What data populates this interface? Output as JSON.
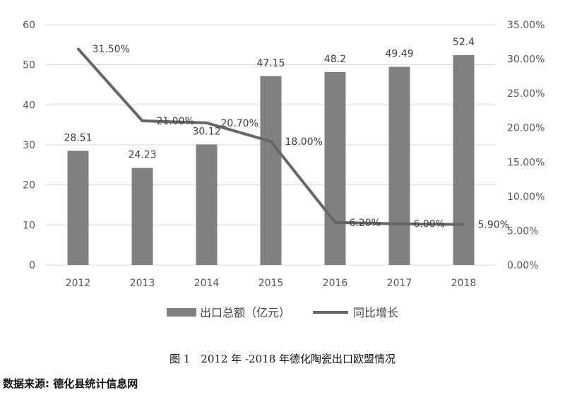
{
  "chart_data": {
    "type": "bar+line",
    "categories": [
      "2012",
      "2013",
      "2014",
      "2015",
      "2016",
      "2017",
      "2018"
    ],
    "series": [
      {
        "name": "出口总额（亿元）",
        "type": "bar",
        "axis": "left",
        "values": [
          28.51,
          24.23,
          30.12,
          47.15,
          48.2,
          49.49,
          52.4
        ],
        "labels": [
          "28.51",
          "24.23",
          "30.12",
          "47.15",
          "48.2",
          "49.49",
          "52.4"
        ],
        "color": "#808080"
      },
      {
        "name": "同比增长",
        "type": "line",
        "axis": "right",
        "values": [
          31.5,
          21.0,
          20.7,
          18.0,
          6.2,
          6.0,
          5.9
        ],
        "labels": [
          "31.50%",
          "21.00%",
          "20.70%",
          "18.00%",
          "6.20%",
          "6.00%",
          "5.90%"
        ],
        "color": "#666666"
      }
    ],
    "y_left": {
      "range": [
        0,
        60
      ],
      "ticks": [
        "0",
        "10",
        "20",
        "30",
        "40",
        "50",
        "60"
      ]
    },
    "y_right": {
      "range": [
        0,
        35
      ],
      "ticks": [
        "0.00%",
        "5.00%",
        "10.00%",
        "15.00%",
        "20.00%",
        "25.00%",
        "30.00%",
        "35.00%"
      ]
    },
    "grid": "horizontal",
    "legend_position": "bottom"
  },
  "caption": "图 1　2012 年 -2018 年德化陶瓷出口欧盟情况",
  "source": "数据来源: 德化县统计信息网"
}
